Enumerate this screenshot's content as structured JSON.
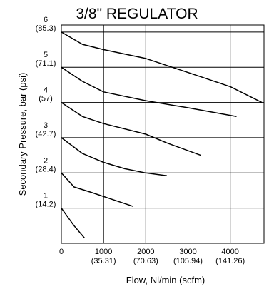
{
  "chart_data": {
    "type": "line",
    "title": "3/8\" REGULATOR",
    "xlabel": "Flow, Nl/min (scfm)",
    "ylabel": "Secondary Pressure, bar (psi)",
    "xlim": [
      0,
      4800
    ],
    "ylim": [
      0,
      6.2
    ],
    "grid": true,
    "x_ticks": [
      {
        "value": 0,
        "label": "0",
        "sub": ""
      },
      {
        "value": 1000,
        "label": "1000",
        "sub": "(35.31)"
      },
      {
        "value": 2000,
        "label": "2000",
        "sub": "(70.63)"
      },
      {
        "value": 3000,
        "label": "3000",
        "sub": "(105.94)"
      },
      {
        "value": 4000,
        "label": "4000",
        "sub": "(141.26)"
      }
    ],
    "y_ticks": [
      {
        "value": 1,
        "label": "1",
        "sub": "(14.2)"
      },
      {
        "value": 2,
        "label": "2",
        "sub": "(28.4)"
      },
      {
        "value": 3,
        "label": "3",
        "sub": "(42.7)"
      },
      {
        "value": 4,
        "label": "4",
        "sub": "(57)"
      },
      {
        "value": 5,
        "label": "5",
        "sub": "(71.1)"
      },
      {
        "value": 6,
        "label": "6",
        "sub": "(85.3)"
      }
    ],
    "series": [
      {
        "x": [
          0,
          150,
          300,
          550
        ],
        "y": [
          1.0,
          0.75,
          0.5,
          0.15
        ]
      },
      {
        "x": [
          0,
          300,
          700,
          1200,
          1700
        ],
        "y": [
          2.0,
          1.6,
          1.45,
          1.25,
          1.05
        ]
      },
      {
        "x": [
          0,
          500,
          1000,
          1500,
          2000,
          2500
        ],
        "y": [
          3.0,
          2.55,
          2.3,
          2.12,
          2.0,
          1.92
        ]
      },
      {
        "x": [
          0,
          500,
          1000,
          2000,
          2500,
          3300
        ],
        "y": [
          4.0,
          3.6,
          3.4,
          3.1,
          2.85,
          2.5
        ]
      },
      {
        "x": [
          0,
          500,
          1000,
          2000,
          3000,
          4150
        ],
        "y": [
          5.0,
          4.6,
          4.3,
          4.05,
          3.85,
          3.6
        ]
      },
      {
        "x": [
          0,
          500,
          1000,
          2000,
          3000,
          4000,
          4750
        ],
        "y": [
          6.0,
          5.65,
          5.5,
          5.25,
          4.85,
          4.45,
          4.0
        ]
      }
    ]
  }
}
